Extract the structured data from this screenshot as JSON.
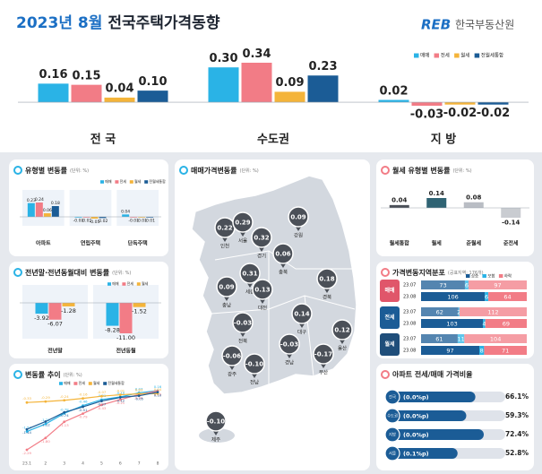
{
  "header": {
    "title_date": "2023년 8월",
    "title": "전국주택가격동향",
    "logo": "REB",
    "org": "한국부동산원"
  },
  "chart_data": [
    {
      "type": "bar",
      "categories": [
        "전 국",
        "수도권",
        "지 방"
      ],
      "legend": "top-right",
      "series": [
        {
          "name": "매매",
          "color": "#2ab3e6",
          "values": [
            0.16,
            0.3,
            0.02
          ],
          "value_labels": [
            "0.16",
            "0.30",
            "0.02"
          ]
        },
        {
          "name": "전세",
          "color": "#f27c86",
          "values": [
            0.15,
            0.34,
            -0.03
          ],
          "value_labels": [
            "0.15",
            "0.34",
            "-0.03"
          ]
        },
        {
          "name": "월세",
          "color": "#f4b43a",
          "values": [
            0.04,
            0.09,
            -0.02
          ],
          "value_labels": [
            "0.04",
            "0.09",
            "-0.02"
          ]
        },
        {
          "name": "전월세통합",
          "color": "#1b5c96",
          "values": [
            0.1,
            0.23,
            -0.02
          ],
          "value_labels": [
            "0.10",
            "0.23",
            "-0.02"
          ]
        }
      ]
    },
    {
      "type": "bar",
      "title": "유형별 변동률",
      "unit": "(단위: %)",
      "categories": [
        "아파트",
        "연립주택",
        "단독주택"
      ],
      "series": [
        {
          "name": "매매",
          "color": "#2ab3e6",
          "values": [
            0.23,
            -0.01,
            0.04
          ],
          "value_labels": [
            "0.23",
            "-0.01",
            "0.04"
          ]
        },
        {
          "name": "전세",
          "color": "#f27c86",
          "values": [
            0.24,
            -0.01,
            -0.01
          ],
          "value_labels": [
            "0.24",
            "-0.01",
            "-0.01"
          ]
        },
        {
          "name": "월세",
          "color": "#f4b43a",
          "values": [
            0.06,
            -0.03,
            -0.01
          ],
          "value_labels": [
            "0.06",
            "-0.03",
            "-0.01"
          ]
        },
        {
          "name": "전월세통합",
          "color": "#1b5c96",
          "values": [
            0.18,
            -0.02,
            -0.01
          ],
          "value_labels": [
            "0.18",
            "-0.02",
            "-0.01"
          ]
        }
      ]
    },
    {
      "type": "map",
      "title": "매매가격변동률",
      "unit": "(단위: %)",
      "regions": [
        {
          "name": "인천",
          "value": 0.22,
          "value_label": "0.22"
        },
        {
          "name": "서울",
          "value": 0.29,
          "value_label": "0.29"
        },
        {
          "name": "경기",
          "value": 0.32,
          "value_label": "0.32"
        },
        {
          "name": "강원",
          "value": 0.09,
          "value_label": "0.09"
        },
        {
          "name": "충북",
          "value": 0.06,
          "value_label": "0.06"
        },
        {
          "name": "세종",
          "value": 0.31,
          "value_label": "0.31"
        },
        {
          "name": "충남",
          "value": 0.09,
          "value_label": "0.09"
        },
        {
          "name": "대전",
          "value": 0.13,
          "value_label": "0.13"
        },
        {
          "name": "경북",
          "value": 0.18,
          "value_label": "0.18"
        },
        {
          "name": "대구",
          "value": 0.14,
          "value_label": "0.14"
        },
        {
          "name": "전북",
          "value": -0.03,
          "value_label": "-0.03"
        },
        {
          "name": "울산",
          "value": 0.12,
          "value_label": "0.12"
        },
        {
          "name": "광주",
          "value": -0.06,
          "value_label": "-0.06"
        },
        {
          "name": "경남",
          "value": -0.03,
          "value_label": "-0.03"
        },
        {
          "name": "부산",
          "value": -0.17,
          "value_label": "-0.17"
        },
        {
          "name": "전남",
          "value": -0.1,
          "value_label": "-0.10"
        },
        {
          "name": "제주",
          "value": -0.1,
          "value_label": "-0.10"
        }
      ]
    },
    {
      "type": "bar",
      "title": "월세 유형별 변동률",
      "unit": "(단위: %)",
      "categories": [
        "월세통합",
        "월세",
        "준월세",
        "준전세"
      ],
      "values": [
        0.04,
        0.14,
        0.08,
        -0.14
      ],
      "value_labels": [
        "0.04",
        "0.14",
        "0.08",
        "-0.14"
      ],
      "colors": [
        "#4a4f57",
        "#2f6373",
        "#b9bdc4",
        "#c9ccd1"
      ]
    },
    {
      "type": "bar",
      "title": "전년말·전년동월대비 변동률",
      "unit": "(단위: %)",
      "categories": [
        "전년말",
        "전년동월"
      ],
      "series": [
        {
          "name": "매매",
          "color": "#2ab3e6",
          "values": [
            -3.92,
            -8.28
          ],
          "value_labels": [
            "-3.92",
            "-8.28"
          ]
        },
        {
          "name": "전세",
          "color": "#f27c86",
          "values": [
            -6.07,
            -11.0
          ],
          "value_labels": [
            "-6.07",
            "-11.00"
          ]
        },
        {
          "name": "월세",
          "color": "#f4b43a",
          "values": [
            -1.28,
            -1.52
          ],
          "value_labels": [
            "-1.28",
            "-1.52"
          ]
        }
      ]
    },
    {
      "type": "stacked_bar",
      "title": "가격변동지역분포",
      "subtitle": "(공표지역: 176개)",
      "groups": [
        "매매",
        "전세",
        "월세"
      ],
      "categories": [
        "23.07",
        "23.08",
        "23.07",
        "23.08",
        "23.07",
        "23.08"
      ],
      "series": [
        {
          "name": "상승",
          "color": "#1b5c96",
          "values": [
            73,
            106,
            62,
            103,
            61,
            97
          ]
        },
        {
          "name": "보합",
          "color": "#2ab3e6",
          "values": [
            6,
            6,
            2,
            4,
            11,
            8
          ]
        },
        {
          "name": "하락",
          "color": "#f27c86",
          "values": [
            97,
            64,
            112,
            69,
            104,
            71
          ]
        }
      ]
    },
    {
      "type": "line",
      "title": "변동률 추이",
      "unit": "(단위: %)",
      "categories": [
        "23.1",
        "2",
        "3",
        "4",
        "5",
        "6",
        "7",
        "8"
      ],
      "series": [
        {
          "name": "매매",
          "color": "#2ab3e6",
          "values": [
            -1.53,
            -1.22,
            -0.78,
            -0.46,
            -0.21,
            -0.1,
            0.07,
            0.16
          ],
          "value_labels": [
            "-1.53",
            "-1.22",
            "-0.78",
            "-0.46",
            "-0.21",
            "-0.10",
            "0.07",
            "0.16"
          ]
        },
        {
          "name": "전세",
          "color": "#f27c86",
          "values": [
            -2.29,
            -1.8,
            -1.13,
            -0.79,
            -0.43,
            -0.21,
            0.0,
            0.15
          ],
          "value_labels": [
            "-2.29",
            "-1.80",
            "-1.13",
            "-0.79",
            "-0.43",
            "-0.21",
            "0.00",
            "0.15"
          ]
        },
        {
          "name": "월세",
          "color": "#f4b43a",
          "values": [
            -0.33,
            -0.29,
            -0.24,
            -0.16,
            -0.07,
            -0.01,
            0.03,
            0.04
          ],
          "value_labels": [
            "-0.33",
            "-0.29",
            "-0.24",
            "-0.16",
            "-0.07",
            "-0.01",
            "0.03",
            "0.04"
          ]
        },
        {
          "name": "전월세통합",
          "color": "#1b5c96",
          "values": [
            -1.44,
            -1.12,
            -0.74,
            -0.51,
            -0.27,
            -0.12,
            -0.05,
            0.1
          ],
          "value_labels": [
            "-1.44",
            "-1.12",
            "-0.74",
            "-0.51",
            "-0.27",
            "-0.12",
            "-0.05",
            "0.10"
          ]
        }
      ]
    },
    {
      "type": "hbar",
      "title": "아파트 전세/매매 가격비율",
      "categories": [
        "전국",
        "수도권",
        "지방",
        "서울"
      ],
      "change_labels": [
        "(0.0%p)",
        "(0.0%p)",
        "(0.0%p)",
        "(0.1%p)"
      ],
      "values": [
        66.1,
        59.3,
        72.4,
        52.8
      ],
      "value_labels": [
        "66.1%",
        "59.3%",
        "72.4%",
        "52.8%"
      ],
      "color": "#1b5c96"
    }
  ]
}
